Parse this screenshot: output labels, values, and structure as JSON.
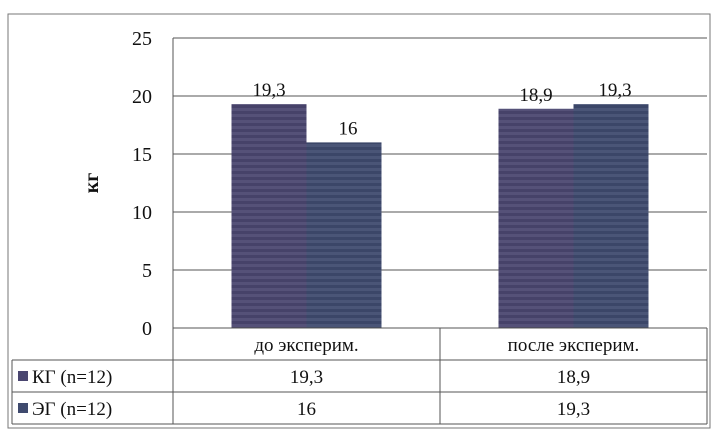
{
  "chart_data": {
    "type": "bar",
    "title": "",
    "xlabel": "",
    "ylabel": "кг",
    "ylim": [
      0,
      25
    ],
    "yticks": [
      0,
      5,
      10,
      15,
      20,
      25
    ],
    "grid": true,
    "legend": "data-table-left",
    "categories": [
      "до эксперим.",
      "после эксперим."
    ],
    "series": [
      {
        "name": "КГ (n=12)",
        "values": [
          19.3,
          18.9
        ],
        "labels": [
          "19,3",
          "18,9"
        ],
        "color": "#4a4670"
      },
      {
        "name": "ЭГ (n=12)",
        "values": [
          16,
          19.3
        ],
        "labels": [
          "16",
          "19,3"
        ],
        "color": "#3f4a6e"
      }
    ]
  }
}
